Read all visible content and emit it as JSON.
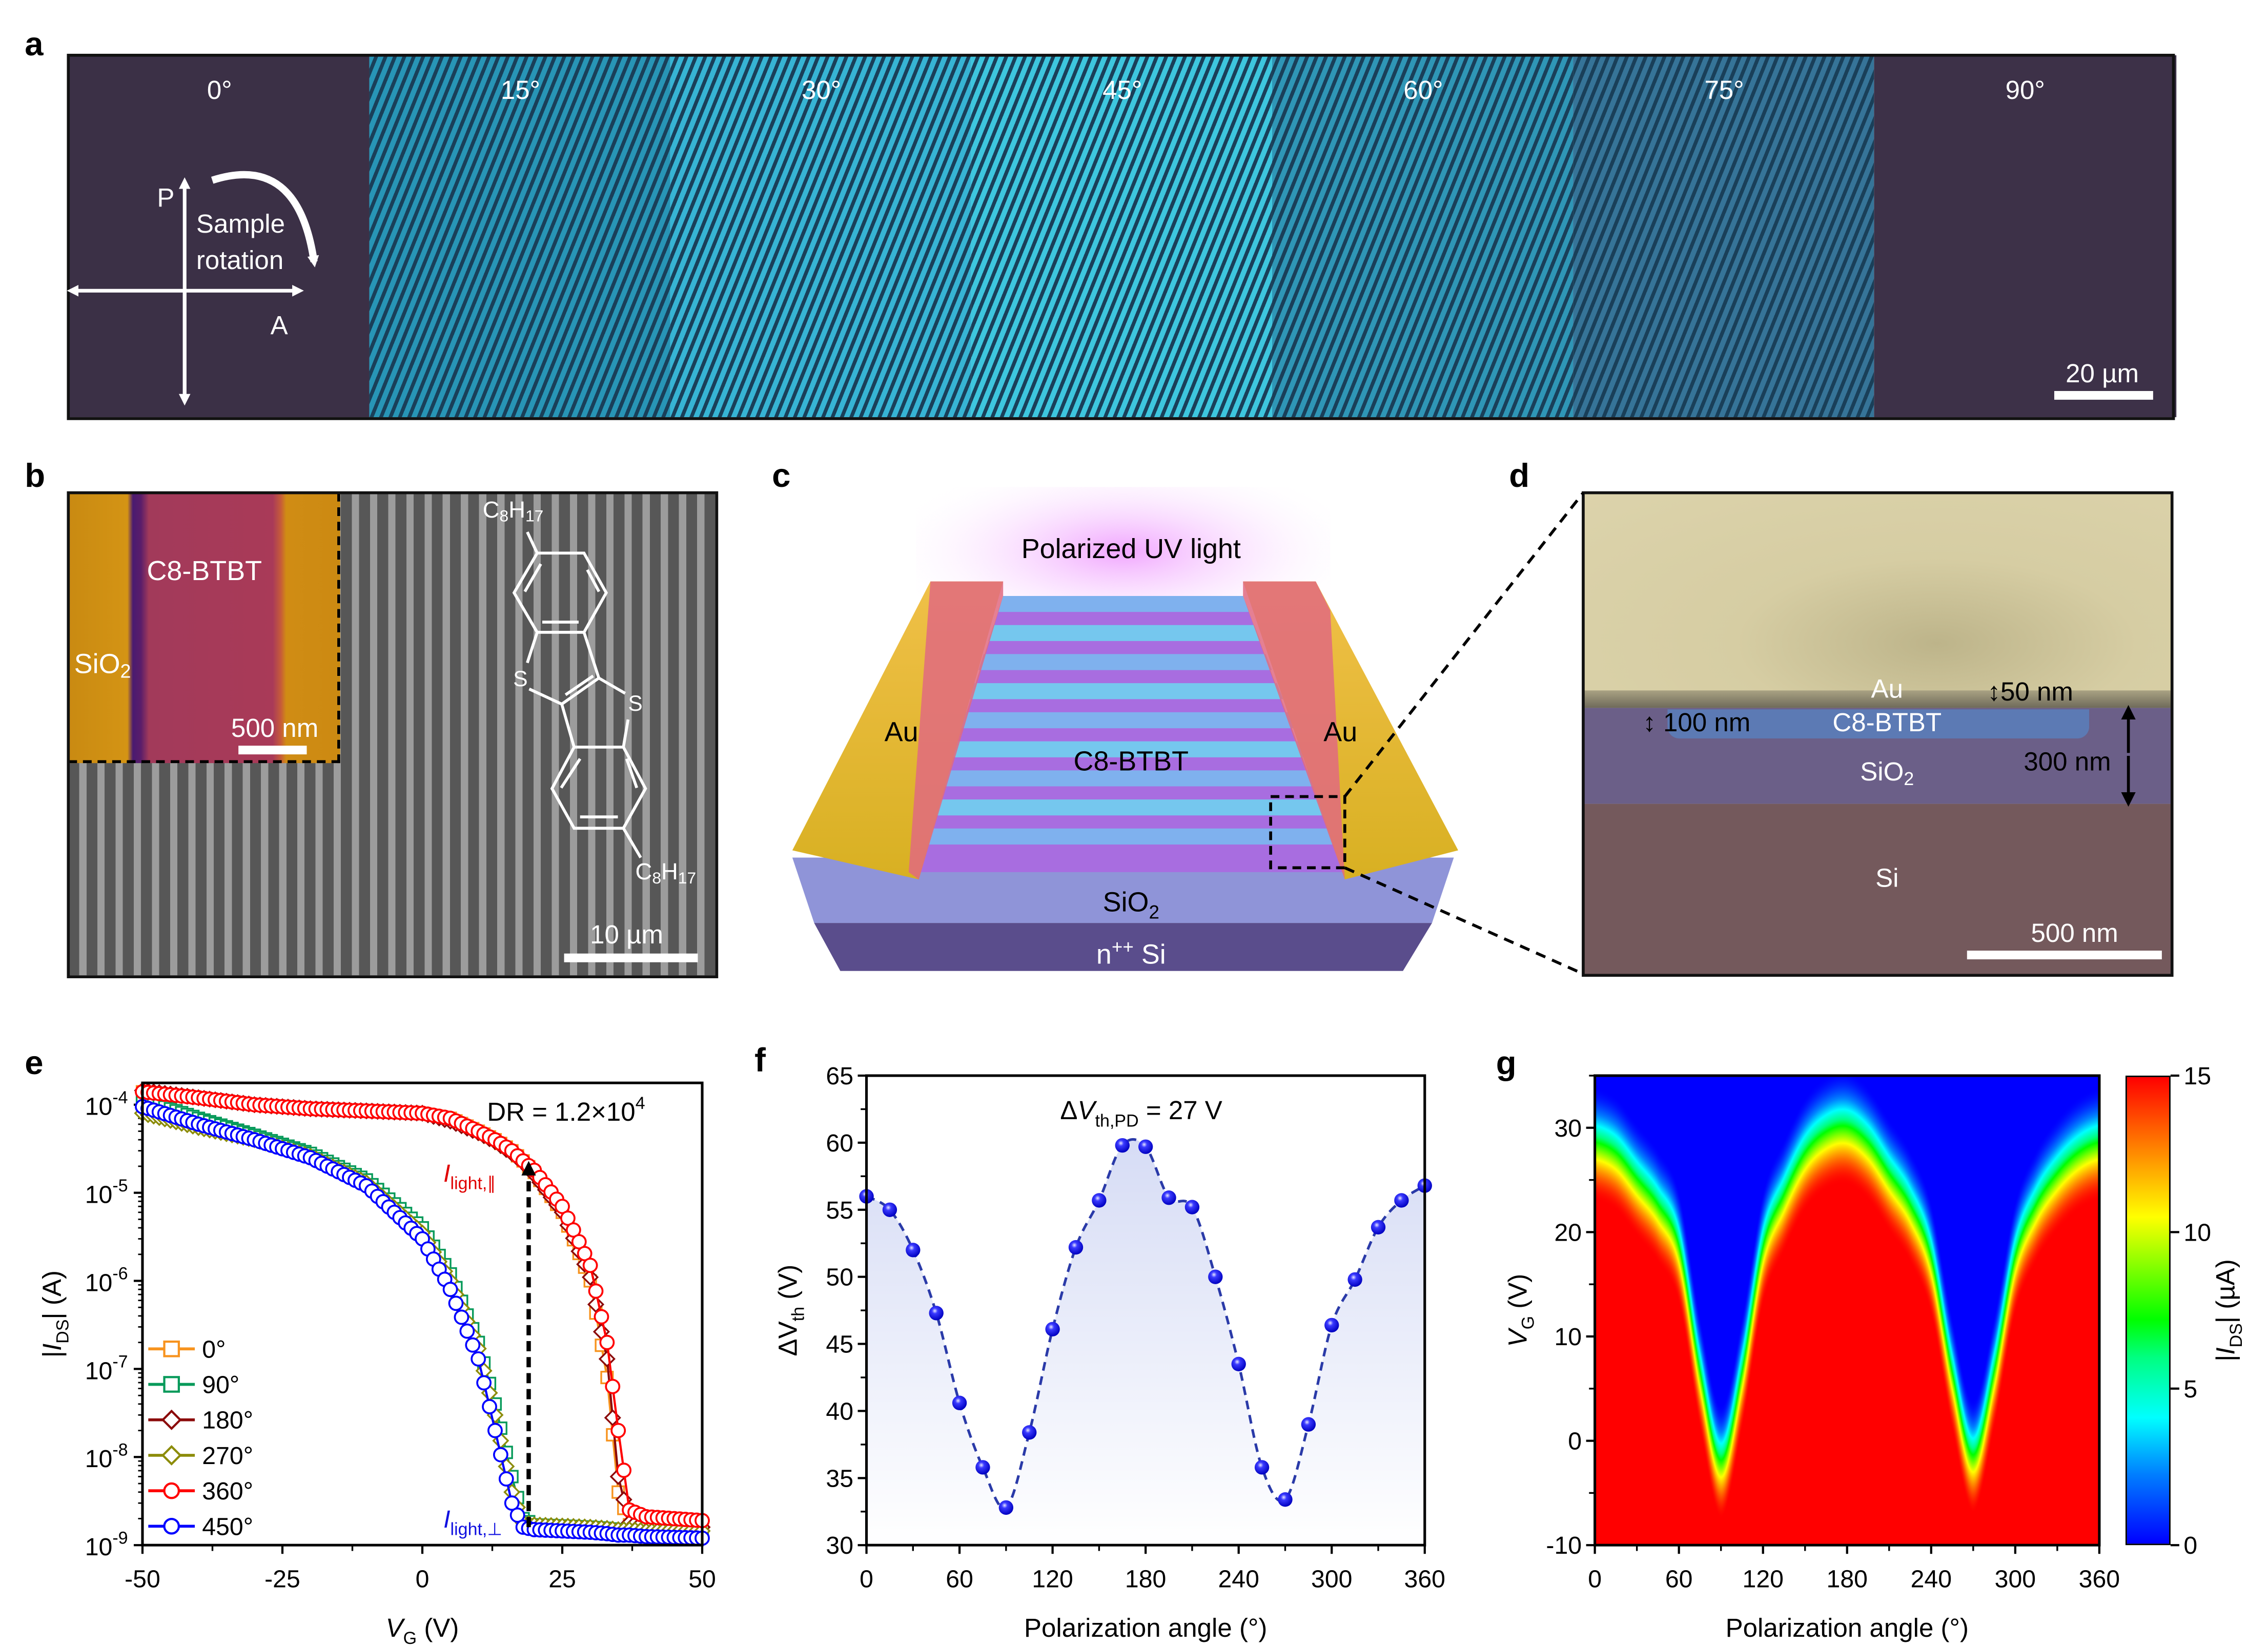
{
  "panel_letters": {
    "a": "a",
    "b": "b",
    "c": "c",
    "d": "d",
    "e": "e",
    "f": "f",
    "g": "g"
  },
  "panel_a": {
    "angles": [
      "0°",
      "15°",
      "30°",
      "45°",
      "60°",
      "75°",
      "90°"
    ],
    "tile_colors": [
      "#3b3046",
      "#1c8fb2",
      "#2cb0d2",
      "#33c3dc",
      "#2490b2",
      "#2b6c92",
      "#3d3148"
    ],
    "polarizer": "P",
    "analyzer": "A",
    "rotation_line1": "Sample",
    "rotation_line2": "rotation",
    "scale_bar": "20 µm"
  },
  "panel_b": {
    "inset_material": "C8-BTBT",
    "inset_substrate": "SiO",
    "inset_substrate_sub": "2",
    "inset_scale": "500 nm",
    "scale": "10 µm",
    "molecule": {
      "c": "C",
      "c_sub": "8",
      "h": "H",
      "h_sub": "17",
      "sulfur": "S"
    }
  },
  "panel_c": {
    "light": "Polarized UV light",
    "electrode_left": "Au",
    "electrode_right": "Au",
    "channel": "C8-BTBT",
    "dielectric": "SiO",
    "dielectric_sub": "2",
    "gate": "n",
    "gate_sup": "++",
    "gate_rest": " Si"
  },
  "panel_d": {
    "au": "Au",
    "au_thickness": "50 nm",
    "c8_thickness": "100 nm",
    "c8": "C8-BTBT",
    "sio2": "SiO",
    "sio2_sub": "2",
    "sio2_thickness": "300 nm",
    "si": "Si",
    "scale": "500 nm"
  },
  "chart_data": [
    {
      "id": "e",
      "type": "line",
      "xlabel": {
        "main": "V",
        "sub": "G",
        "unit": " (V)"
      },
      "ylabel": {
        "pre": "|",
        "main": "I",
        "sub": "DS",
        "unit": "| (A)"
      },
      "xlim": [
        -50,
        50
      ],
      "ylim": [
        1e-09,
        0.00018
      ],
      "yscale": "log",
      "xticks": [
        -50,
        -25,
        0,
        25,
        50
      ],
      "xtick_labels": [
        "-50",
        "-25",
        "0",
        "25",
        "50"
      ],
      "yticks": [
        0.0001,
        1e-05,
        1e-06,
        1e-07,
        1e-08,
        1e-09
      ],
      "ytick_base": "10",
      "ytick_exponents": [
        "-4",
        "-5",
        "-6",
        "-7",
        "-8",
        "-9"
      ],
      "x": [
        -50,
        -40,
        -30,
        -20,
        -10,
        0,
        5,
        10,
        13,
        16,
        18,
        20,
        25,
        30,
        33,
        35,
        37,
        40,
        50
      ],
      "series": [
        {
          "name": "0°",
          "color": "#f7931e",
          "marker": "square",
          "values": [
            0.00014,
            0.00012,
            0.0001,
            9e-05,
            8.5e-05,
            8e-05,
            7e-05,
            5e-05,
            4e-05,
            3e-05,
            2.3e-05,
            1.7e-05,
            6e-06,
            1e-06,
            8e-08,
            4e-09,
            1.7e-09,
            1.6e-09,
            1.5e-09
          ]
        },
        {
          "name": "90°",
          "color": "#079a5a",
          "marker": "square",
          "values": [
            0.000115,
            7e-05,
            4.5e-05,
            2.8e-05,
            1.4e-05,
            4e-06,
            1.2e-06,
            2e-07,
            4e-08,
            6e-09,
            2e-09,
            1.7e-09,
            1.65e-09,
            1.6e-09,
            1.55e-09,
            1.5e-09,
            1.5e-09,
            1.45e-09,
            1.4e-09
          ]
        },
        {
          "name": "180°",
          "color": "#8b0a0a",
          "marker": "diamond",
          "values": [
            0.000145,
            0.00012,
            0.0001,
            9e-05,
            8.5e-05,
            8e-05,
            6.5e-05,
            4.8e-05,
            3.8e-05,
            2.8e-05,
            2.2e-05,
            1.6e-05,
            6e-06,
            1.1e-06,
            1.3e-07,
            6e-09,
            1.8e-09,
            1.7e-09,
            1.6e-09
          ]
        },
        {
          "name": "270°",
          "color": "#8c8c0a",
          "marker": "diamond",
          "values": [
            8e-05,
            5.5e-05,
            4e-05,
            2.6e-05,
            1.3e-05,
            3.5e-06,
            1e-06,
            1.7e-07,
            3e-08,
            4e-09,
            1.8e-09,
            1.7e-09,
            1.65e-09,
            1.6e-09,
            1.55e-09,
            1.5e-09,
            1.5e-09,
            1.45e-09,
            1.45e-09
          ]
        },
        {
          "name": "360°",
          "color": "#ff0000",
          "marker": "circle",
          "values": [
            0.00014,
            0.00012,
            0.0001,
            9e-05,
            8.5e-05,
            8e-05,
            7e-05,
            5e-05,
            4e-05,
            3e-05,
            2.3e-05,
            1.8e-05,
            7e-06,
            1.5e-06,
            2e-07,
            2e-08,
            2.5e-09,
            2.1e-09,
            1.9e-09
          ]
        },
        {
          "name": "450°",
          "color": "#0000ff",
          "marker": "circle",
          "values": [
            9.5e-05,
            6e-05,
            4e-05,
            2.5e-05,
            1.2e-05,
            3e-06,
            8e-07,
            1.3e-07,
            2e-08,
            3e-09,
            1.6e-09,
            1.5e-09,
            1.45e-09,
            1.4e-09,
            1.35e-09,
            1.3e-09,
            1.3e-09,
            1.25e-09,
            1.2e-09
          ]
        }
      ],
      "legend_position": "bottom-left",
      "annotations": {
        "dr": "DR = 1.2×10",
        "dr_sup": "4",
        "parallel_main": "I",
        "parallel_sub": "light,∥",
        "parallel_color": "#e00000",
        "perp_main": "I",
        "perp_sub": "light,⊥",
        "perp_color": "#1010e0"
      }
    },
    {
      "id": "f",
      "type": "scatter",
      "xlabel": "Polarization angle (°)",
      "ylabel": {
        "pre": "ΔV",
        "sub": "th",
        "unit": " (V)"
      },
      "xlim": [
        0,
        360
      ],
      "ylim": [
        30,
        65
      ],
      "xticks": [
        0,
        60,
        120,
        180,
        240,
        300,
        360
      ],
      "xtick_labels": [
        "0",
        "60",
        "120",
        "180",
        "240",
        "300",
        "360"
      ],
      "yticks": [
        30,
        35,
        40,
        45,
        50,
        55,
        60,
        65
      ],
      "ytick_labels": [
        "30",
        "35",
        "40",
        "45",
        "50",
        "55",
        "60",
        "65"
      ],
      "x": [
        0,
        15,
        30,
        45,
        60,
        75,
        90,
        105,
        120,
        135,
        150,
        165,
        180,
        195,
        210,
        225,
        240,
        255,
        270,
        285,
        300,
        315,
        330,
        345,
        360
      ],
      "y": [
        56.0,
        55.0,
        52.0,
        47.3,
        40.6,
        35.8,
        32.8,
        38.4,
        46.1,
        52.2,
        55.7,
        59.8,
        59.7,
        55.9,
        55.2,
        50.0,
        43.5,
        35.8,
        33.4,
        39.0,
        46.4,
        49.8,
        53.7,
        55.7,
        56.8
      ],
      "color": "#1a1aff",
      "fit_line": "dashed",
      "annotation": {
        "pre": "Δ",
        "main": "V",
        "sub": "th,PD",
        "post": " = 27 V"
      }
    },
    {
      "id": "g",
      "type": "heatmap",
      "xlabel": "Polarization angle (°)",
      "ylabel": {
        "main": "V",
        "sub": "G",
        "unit": " (V)"
      },
      "xlim": [
        0,
        360
      ],
      "ylim": [
        -10,
        35
      ],
      "xticks": [
        0,
        60,
        120,
        180,
        240,
        300,
        360
      ],
      "xtick_labels": [
        "0",
        "60",
        "120",
        "180",
        "240",
        "300",
        "360"
      ],
      "yticks": [
        -10,
        0,
        10,
        20,
        30
      ],
      "ytick_labels": [
        "-10",
        "0",
        "10",
        "20",
        "30"
      ],
      "colorbar": {
        "label": {
          "pre": "|",
          "main": "I",
          "sub": "DS",
          "unit": "| (µA)"
        },
        "range": [
          0,
          15
        ],
        "ticks": [
          0,
          5,
          10,
          15
        ],
        "tick_labels": [
          "0",
          "5",
          "10",
          "15"
        ],
        "colormap": "jet"
      },
      "saturation_edge": {
        "angle": [
          0,
          15,
          30,
          45,
          60,
          75,
          90,
          105,
          120,
          135,
          150,
          165,
          180,
          195,
          210,
          225,
          240,
          255,
          270,
          285,
          300,
          315,
          330,
          345,
          360
        ],
        "vg_top_of_max_current": [
          23,
          22,
          19.5,
          17,
          13,
          1,
          -7.5,
          1,
          13,
          18,
          22,
          24,
          24.5,
          23,
          20,
          17,
          12,
          1,
          -7,
          1,
          12,
          17,
          20,
          22,
          23
        ]
      },
      "transition_width_vg": 11
    }
  ]
}
